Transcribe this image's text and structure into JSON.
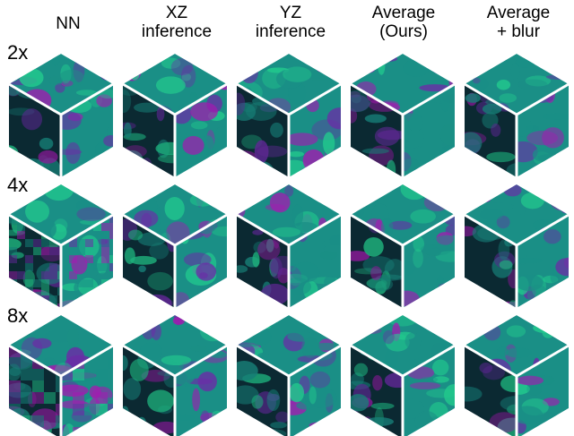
{
  "figure": {
    "columns": [
      {
        "id": "nn",
        "label": "NN"
      },
      {
        "id": "xz",
        "label": "XZ\ninference"
      },
      {
        "id": "yz",
        "label": "YZ\ninference"
      },
      {
        "id": "avg",
        "label": "Average\n(Ours)"
      },
      {
        "id": "blur",
        "label": "Average\n+ blur"
      }
    ],
    "rows": [
      {
        "id": "2x",
        "label": "2x"
      },
      {
        "id": "4x",
        "label": "4x"
      },
      {
        "id": "8x",
        "label": "8x"
      }
    ],
    "colors": {
      "teal": "#1a8f86",
      "green": "#22c98d",
      "magenta": "#a21bb0",
      "purple": "#6a2da6",
      "dark": "#0d2f3a",
      "edge": "#ffffff"
    }
  }
}
